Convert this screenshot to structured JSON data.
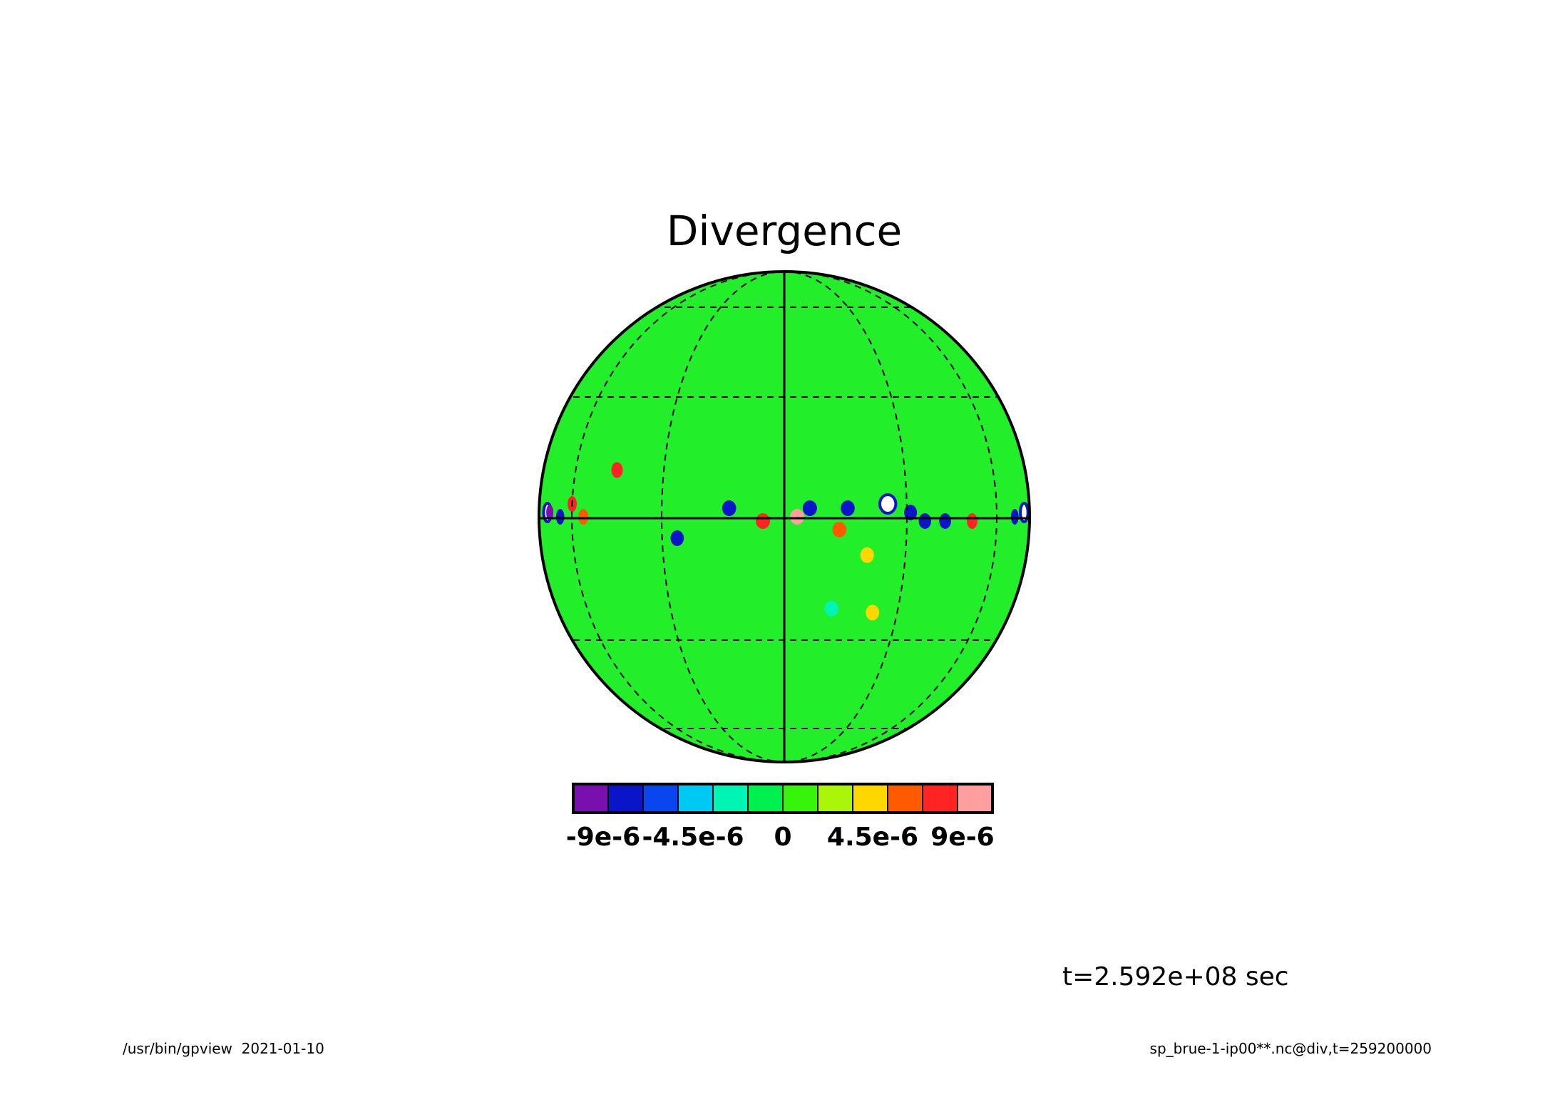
{
  "chart_data": {
    "type": "heatmap",
    "projection": "orthographic",
    "title": "Divergence",
    "colorbar": {
      "levels": 12,
      "colors": [
        "#7a0fb0",
        "#0a14c8",
        "#0a46f0",
        "#00c8f5",
        "#00f5b4",
        "#00f050",
        "#37f50a",
        "#aaf50a",
        "#ffd700",
        "#ff5a00",
        "#ff2323",
        "#ff9e9e"
      ],
      "tick_labels": [
        "-9e-6",
        "-4.5e-6",
        "0",
        "4.5e-6",
        "9e-6"
      ],
      "tick_values": [
        -9e-06,
        -4.5e-06,
        0,
        4.5e-06,
        9e-06
      ],
      "range": [
        -1.05e-05,
        1.05e-05
      ]
    },
    "grid": true,
    "field_features": [
      {
        "lon": -75,
        "lat": 1,
        "value": 1.2e-05
      },
      {
        "lon": -73,
        "lat": 1,
        "value": -1e-05
      },
      {
        "lon": -66,
        "lat": 0,
        "value": -7e-06
      },
      {
        "lon": -60,
        "lat": 3,
        "value": 7e-06
      },
      {
        "lon": -55,
        "lat": 0,
        "value": 6e-06
      },
      {
        "lon": -44,
        "lat": 11,
        "value": 7e-06
      },
      {
        "lon": -26,
        "lat": -5,
        "value": -7e-06
      },
      {
        "lon": -13,
        "lat": 2,
        "value": -8e-06
      },
      {
        "lon": -5,
        "lat": -1,
        "value": 8e-06
      },
      {
        "lon": 3,
        "lat": 0,
        "value": 9e-06
      },
      {
        "lon": 6,
        "lat": 2,
        "value": -7e-06
      },
      {
        "lon": 15,
        "lat": 2,
        "value": -8e-06
      },
      {
        "lon": 13,
        "lat": -3,
        "value": 6e-06
      },
      {
        "lon": 20,
        "lat": -9,
        "value": 5e-06
      },
      {
        "lon": 25,
        "lat": 3,
        "value": 1.2e-05
      },
      {
        "lon": 31,
        "lat": 1,
        "value": -8e-06
      },
      {
        "lon": 35,
        "lat": -1,
        "value": -8e-06
      },
      {
        "lon": 41,
        "lat": -1,
        "value": -7e-06
      },
      {
        "lon": 50,
        "lat": -1,
        "value": 7e-06
      },
      {
        "lon": 70,
        "lat": 0,
        "value": -8e-06
      },
      {
        "lon": 78,
        "lat": 1,
        "value": 1.1e-05
      },
      {
        "lon": 12,
        "lat": -22,
        "value": -3e-06
      },
      {
        "lon": 23,
        "lat": -23,
        "value": 4e-06
      }
    ]
  },
  "time_label": "t=2.592e+08 sec",
  "footer": {
    "left": "/usr/bin/gpview  2021-01-10",
    "right": "sp_brue-1-ip00**.nc@div,t=259200000"
  }
}
